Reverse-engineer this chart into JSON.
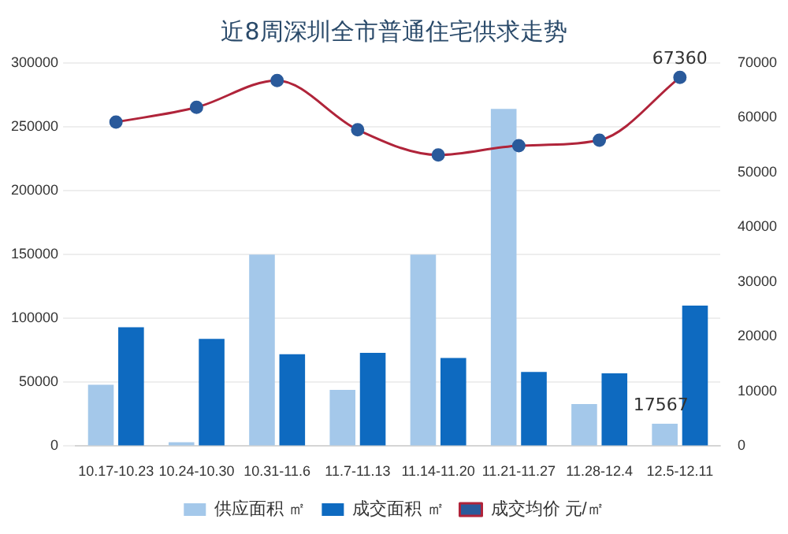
{
  "chart_data": {
    "type": "bar",
    "title": "近8周深圳全市普通住宅供求走势",
    "categories": [
      "10.17-10.23",
      "10.24-10.30",
      "10.31-11.6",
      "11.7-11.13",
      "11.14-11.20",
      "11.21-11.27",
      "11.28-12.4",
      "12.5-12.11"
    ],
    "series": [
      {
        "name": "供应面积 ㎡",
        "color": "#a4c8ea",
        "values": [
          48000,
          3000,
          150000,
          44000,
          150000,
          264000,
          33000,
          17567
        ],
        "value_labels": [
          null,
          null,
          null,
          null,
          null,
          null,
          null,
          "17567"
        ]
      },
      {
        "name": "成交面积 ㎡",
        "color": "#0e6ac0",
        "values": [
          93000,
          84000,
          72000,
          73000,
          69000,
          58000,
          57000,
          110000
        ]
      },
      {
        "name": "成交均价 元/㎡",
        "type": "line",
        "axis": "y2",
        "color": "#b0243a",
        "values": [
          59200,
          61900,
          66800,
          57800,
          53200,
          54900,
          55900,
          67360
        ],
        "value_labels": [
          null,
          null,
          null,
          null,
          null,
          null,
          null,
          "67360"
        ]
      }
    ],
    "ylim": [
      0,
      300000
    ],
    "yticks": [
      0,
      50000,
      100000,
      150000,
      200000,
      250000,
      300000
    ],
    "y2lim": [
      0,
      70000
    ],
    "y2ticks": [
      0,
      10000,
      20000,
      30000,
      40000,
      50000,
      60000,
      70000
    ],
    "grid": "y",
    "legend": "bottom",
    "marker": "circle"
  }
}
